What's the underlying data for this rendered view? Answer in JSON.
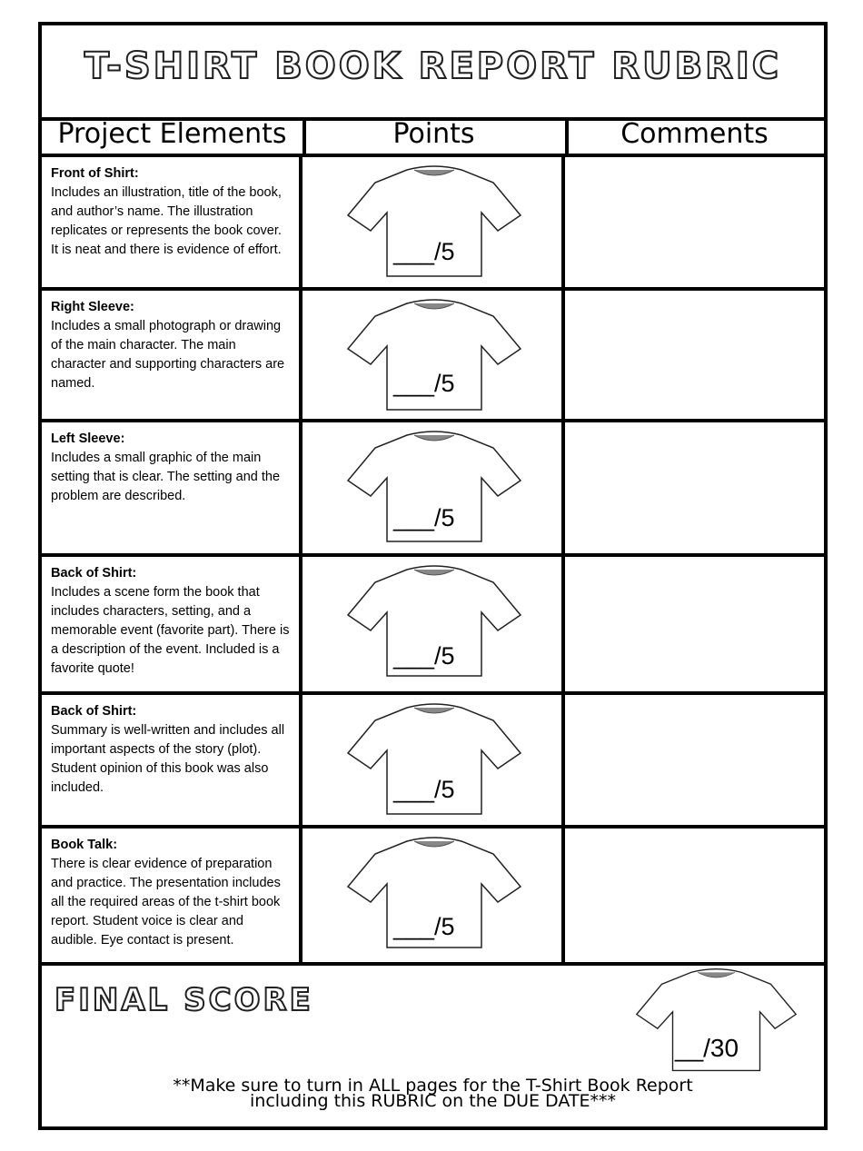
{
  "title": "T-SHIRT BOOK REPORT RUBRIC",
  "headers": {
    "elements": "Project Elements",
    "points": "Points",
    "comments": "Comments"
  },
  "rows": [
    {
      "heading": "Front of Shirt:",
      "text": "Includes an illustration, title of the book, and author’s name. The illustration replicates or represents the book cover. It is neat and there is evidence of effort.",
      "score": "___/5"
    },
    {
      "heading": "Right Sleeve:",
      "text": "Includes a small photograph or drawing of the main character.  The main character and supporting characters are named.",
      "score": "___/5"
    },
    {
      "heading": "Left Sleeve:",
      "text": "Includes a small graphic of the main setting that is clear.  The setting and the problem are described.",
      "score": "___/5"
    },
    {
      "heading": "Back of Shirt:",
      "text": "Includes a scene form the book that includes characters, setting, and a memorable event (favorite part). There is a description of the event. Included is a favorite quote!",
      "score": "___/5"
    },
    {
      "heading": "Back of Shirt:",
      "text": "Summary is well-written and includes all important aspects of the story (plot). Student opinion of this book was also included.",
      "score": "___/5"
    },
    {
      "heading": "Book Talk:",
      "text": "There is clear evidence of preparation and practice. The presentation includes all the required areas of the t-shirt book report. Student voice is clear and audible. Eye contact is present.",
      "score": "___/5"
    }
  ],
  "final": {
    "label": "FINAL SCORE",
    "score": "__/30",
    "note_line1": "**Make sure to turn in ALL pages for the T-Shirt Book Report",
    "note_line2": "including this RUBRIC on the DUE DATE***"
  }
}
